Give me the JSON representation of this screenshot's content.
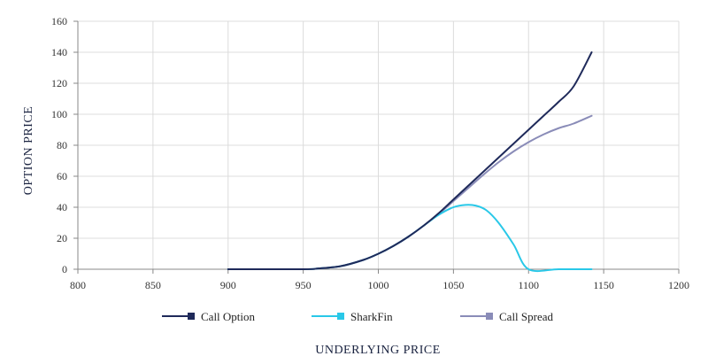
{
  "chart_data": {
    "type": "line",
    "title": "",
    "xlabel": "UNDERLYING PRICE",
    "ylabel": "OPTION PRICE",
    "xlim": [
      800,
      1200
    ],
    "ylim": [
      0,
      160
    ],
    "x_ticks": [
      800,
      850,
      900,
      950,
      1000,
      1050,
      1100,
      1150,
      1200
    ],
    "y_ticks": [
      0,
      20,
      40,
      60,
      80,
      100,
      120,
      140,
      160
    ],
    "grid": true,
    "legend_position": "bottom",
    "series": [
      {
        "name": "Call Option",
        "color": "#1f2a5a",
        "x": [
          900,
          950,
          960,
          975,
          990,
          1000,
          1010,
          1020,
          1030,
          1040,
          1050,
          1060,
          1070,
          1080,
          1090,
          1100,
          1110,
          1120,
          1130,
          1142
        ],
        "y": [
          0,
          0,
          0.5,
          2,
          6,
          10,
          15,
          21,
          28,
          36,
          45,
          54,
          63,
          72,
          81,
          90,
          99,
          108,
          118,
          140
        ]
      },
      {
        "name": "SharkFin",
        "color": "#29c8e8",
        "x": [
          900,
          950,
          960,
          975,
          990,
          1000,
          1010,
          1020,
          1030,
          1040,
          1050,
          1058,
          1065,
          1072,
          1080,
          1090,
          1100,
          1120,
          1142
        ],
        "y": [
          0,
          0,
          0.5,
          2,
          6,
          10,
          15,
          21,
          28,
          35,
          40,
          41.5,
          41,
          38,
          30,
          16,
          0,
          0,
          0
        ]
      },
      {
        "name": "Call Spread",
        "color": "#8a8cb8",
        "x": [
          900,
          950,
          960,
          975,
          990,
          1000,
          1010,
          1020,
          1030,
          1040,
          1050,
          1060,
          1070,
          1080,
          1090,
          1100,
          1110,
          1120,
          1130,
          1142
        ],
        "y": [
          0,
          0,
          0.5,
          2,
          6,
          10,
          15,
          21,
          28,
          35.5,
          44,
          52.5,
          61,
          69,
          76,
          82,
          87,
          91,
          94,
          99
        ]
      }
    ]
  }
}
